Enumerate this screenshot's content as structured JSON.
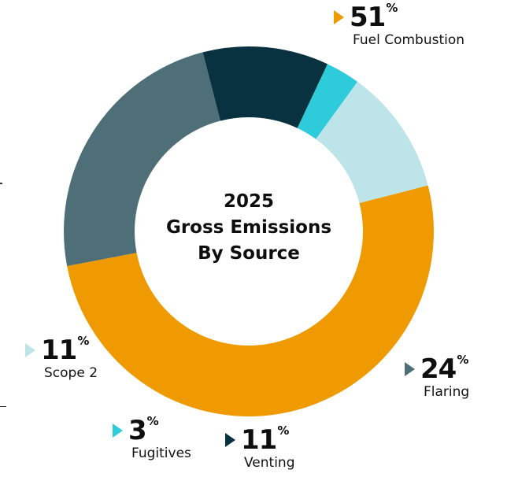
{
  "chart_data": {
    "type": "pie",
    "title": "2025 Gross Emissions By Source",
    "title_lines": [
      "2025",
      "Gross Emissions",
      "By Source"
    ],
    "percent_sign": "%",
    "slices": [
      {
        "label": "Fuel Combustion",
        "value": 51,
        "value_text": "51",
        "color": "#EE9A00"
      },
      {
        "label": "Flaring",
        "value": 24,
        "value_text": "24",
        "color": "#4E6F78"
      },
      {
        "label": "Venting",
        "value": 11,
        "value_text": "11",
        "color": "#093241"
      },
      {
        "label": "Fugitives",
        "value": 3,
        "value_text": "3",
        "color": "#2ECCDB"
      },
      {
        "label": "Scope 2",
        "value": 11,
        "value_text": "11",
        "color": "#BDE5E9"
      }
    ]
  }
}
